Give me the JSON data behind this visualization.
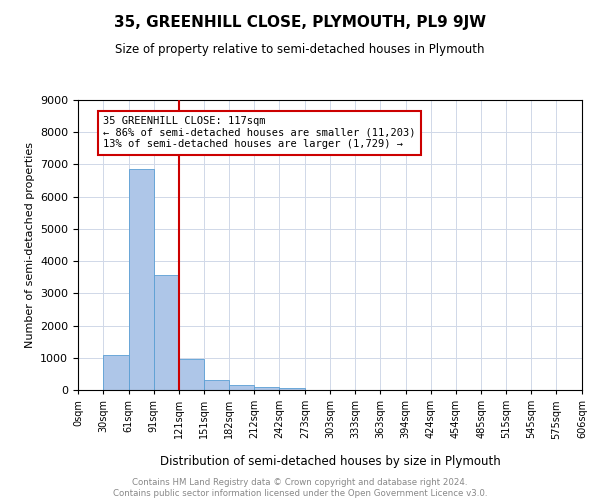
{
  "title": "35, GREENHILL CLOSE, PLYMOUTH, PL9 9JW",
  "subtitle": "Size of property relative to semi-detached houses in Plymouth",
  "xlabel": "Distribution of semi-detached houses by size in Plymouth",
  "ylabel": "Number of semi-detached properties",
  "footer_line1": "Contains HM Land Registry data © Crown copyright and database right 2024.",
  "footer_line2": "Contains public sector information licensed under the Open Government Licence v3.0.",
  "annotation_title": "35 GREENHILL CLOSE: 117sqm",
  "annotation_line1": "← 86% of semi-detached houses are smaller (11,203)",
  "annotation_line2": "13% of semi-detached houses are larger (1,729) →",
  "property_size": 117,
  "vline_x": 121,
  "bar_color": "#aec6e8",
  "bar_edge_color": "#5a9fd4",
  "vline_color": "#cc0000",
  "annotation_box_color": "#cc0000",
  "grid_color": "#d0d8e8",
  "bins": [
    0,
    30,
    61,
    91,
    121,
    151,
    182,
    212,
    242,
    273,
    303,
    333,
    363,
    394,
    424,
    454,
    485,
    515,
    545,
    575,
    606
  ],
  "bin_labels": [
    "0sqm",
    "30sqm",
    "61sqm",
    "91sqm",
    "121sqm",
    "151sqm",
    "182sqm",
    "212sqm",
    "242sqm",
    "273sqm",
    "303sqm",
    "333sqm",
    "363sqm",
    "394sqm",
    "424sqm",
    "454sqm",
    "485sqm",
    "515sqm",
    "545sqm",
    "575sqm",
    "606sqm"
  ],
  "bar_heights": [
    0,
    1100,
    6850,
    3580,
    970,
    320,
    150,
    100,
    70,
    0,
    0,
    0,
    0,
    0,
    0,
    0,
    0,
    0,
    0,
    0
  ],
  "ylim": [
    0,
    9000
  ],
  "yticks": [
    0,
    1000,
    2000,
    3000,
    4000,
    5000,
    6000,
    7000,
    8000,
    9000
  ]
}
